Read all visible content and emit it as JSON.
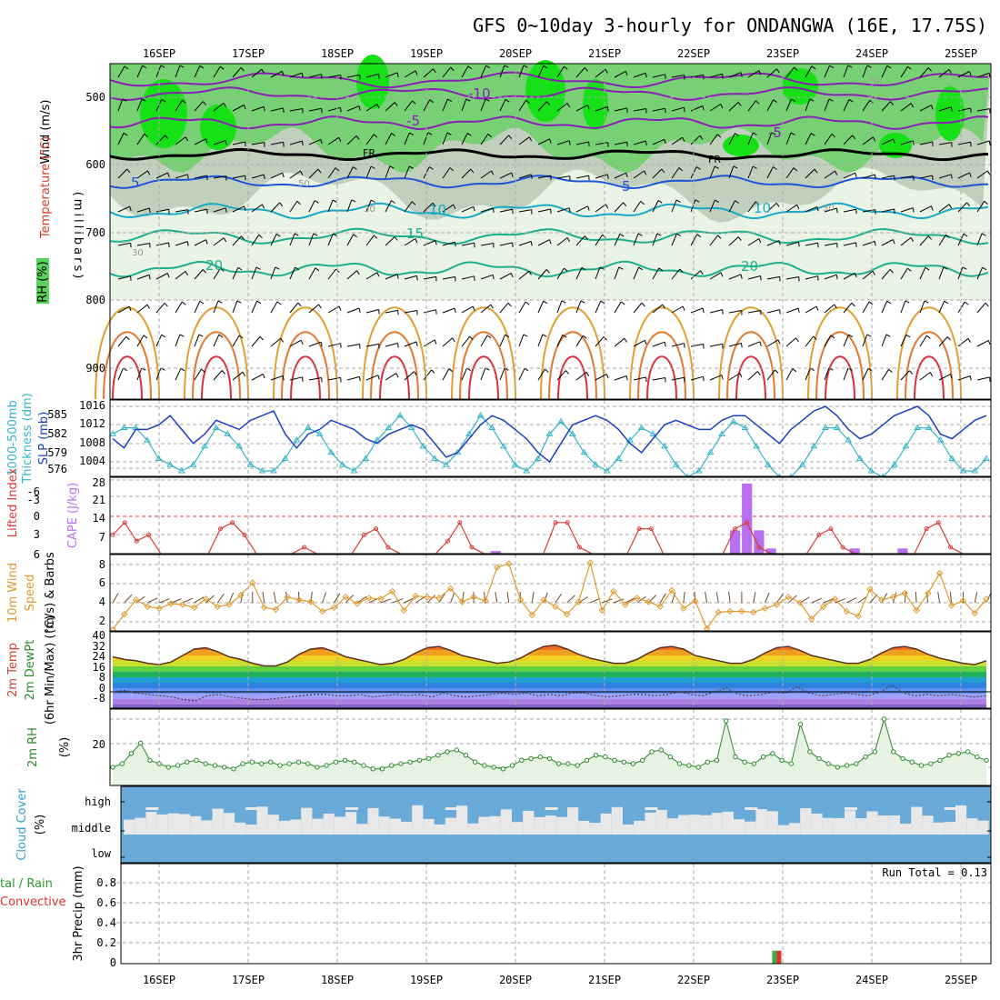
{
  "title": "GFS 0~10day 3-hourly for ONDANGWA (16E, 17.75S)",
  "days": [
    "16SEP",
    "17SEP",
    "18SEP",
    "19SEP",
    "20SEP",
    "21SEP",
    "22SEP",
    "23SEP",
    "24SEP",
    "25SEP"
  ],
  "colors": {
    "rh_light": "#e9f4e4",
    "rh_mid": "#b9c9b6",
    "rh_dark": "#6fcf6a",
    "rh_vivid": "#16e016",
    "temp_cold": "#8a1fb5",
    "temp_mid": "#1f55d6",
    "temp_warm": "#18a8c8",
    "temp_teal": "#1dae8c",
    "temp_hot1": "#e0a030",
    "temp_hot2": "#e07830",
    "temp_hot3": "#d83040",
    "slp": "#1a3fbf",
    "thickness": "#35b5c8",
    "lifted": "#d83a3a",
    "cape": "#b870f0",
    "wind": "#e09a30",
    "rh2m": "#2a8a2a",
    "cloud_bg": "#6aaad8",
    "cloud_fill": "#e8e8e8",
    "rain": "#3ab03a",
    "convective": "#e03030"
  },
  "panels": {
    "upper": {
      "ylabel_wind": "Wind (m/s)",
      "ylabel_temp": "Temperature (°C)",
      "ylabel_rh": "RH (%)",
      "ylabel_pressure": "(millibars)",
      "ticks": [
        "500",
        "600",
        "700",
        "800",
        "900"
      ],
      "temp_labels": [
        "-10",
        "-5",
        "FR",
        "5",
        "10",
        "15",
        "20",
        "-5",
        "FR",
        "5",
        "10",
        "20"
      ],
      "rh_labels": [
        "50",
        "30",
        "30",
        "30",
        "50"
      ]
    },
    "slp": {
      "ylabel1": "1000-500mb",
      "ylabel2": "Thickness (dm)",
      "ylabel3": "SLP (mb)",
      "left_ticks": [
        "585",
        "582",
        "579",
        "576"
      ],
      "right_ticks": [
        "1016",
        "1012",
        "1008",
        "1004"
      ]
    },
    "cape": {
      "ylabel1": "Lifted Index",
      "ylabel2": "CAPE (J/kg)",
      "left_ticks": [
        "-6",
        "-3",
        "0",
        "3",
        "6"
      ],
      "right_ticks": [
        "28",
        "21",
        "14",
        "7"
      ]
    },
    "wind": {
      "ylabel1": "10m Wind",
      "ylabel2": "Speed",
      "ylabel3": "(m/s) & Barbs",
      "ticks": [
        "8",
        "6",
        "4",
        "2"
      ]
    },
    "temp": {
      "ylabel1": "2m Temp",
      "ylabel2": "2m DewPt",
      "ylabel3": "(6hr Min/Max) (°C)",
      "ticks": [
        "40",
        "32",
        "24",
        "16",
        "8",
        "0",
        "-8"
      ]
    },
    "rh": {
      "ylabel1": "2m RH",
      "ylabel2": "(%)",
      "ticks": [
        "20"
      ]
    },
    "cloud": {
      "ylabel1": "Cloud Cover",
      "ylabel2": "(%)",
      "ticks": [
        "high",
        "middle",
        "low"
      ]
    },
    "precip": {
      "ylabel1": "tal / Rain",
      "ylabel2": "Convective",
      "ylabel3": "3hr Precip (mm)",
      "ticks": [
        "0.8",
        "0.6",
        "0.4",
        "0.2",
        "0"
      ],
      "run_total": "Run Total = 0.13"
    }
  },
  "chart_data": [
    {
      "type": "line",
      "name": "SLP / 1000-500mb thickness",
      "series": [
        {
          "name": "SLP (mb)",
          "values": [
            1009,
            1007,
            1011,
            1011,
            1012,
            1014,
            1011,
            1008,
            1010,
            1013,
            1012,
            1011,
            1013,
            1014,
            1015,
            1010,
            1007,
            1010,
            1011,
            1013,
            1012,
            1011,
            1009,
            1008,
            1010,
            1011,
            1012,
            1011,
            1008,
            1005,
            1006,
            1009,
            1012,
            1014,
            1013,
            1011,
            1009,
            1006,
            1004,
            1008,
            1012,
            1013,
            1014,
            1013,
            1011,
            1008,
            1006,
            1009,
            1012,
            1013,
            1012,
            1011,
            1011,
            1013,
            1014,
            1014,
            1012,
            1010,
            1008,
            1011,
            1013,
            1015,
            1016,
            1014,
            1011,
            1009,
            1010,
            1012,
            1014,
            1015,
            1016,
            1014,
            1010,
            1009,
            1011,
            1013,
            1014
          ]
        },
        {
          "name": "Thickness (dm)",
          "values": [
            582,
            583,
            583,
            581,
            578,
            577,
            576,
            577,
            580,
            583,
            582,
            580,
            577,
            576,
            576,
            578,
            581,
            583,
            582,
            579,
            577,
            576,
            578,
            581,
            583,
            585,
            583,
            580,
            578,
            577,
            579,
            582,
            585,
            583,
            580,
            577,
            576,
            578,
            582,
            584,
            582,
            579,
            577,
            576,
            578,
            581,
            583,
            582,
            580,
            577,
            575,
            576,
            579,
            582,
            584,
            583,
            580,
            577,
            575,
            575,
            577,
            580,
            583,
            583,
            581,
            578,
            576,
            575,
            577,
            580,
            583,
            583,
            581,
            578,
            576,
            576,
            578
          ]
        }
      ]
    },
    {
      "type": "bar",
      "name": "CAPE / Lifted Index",
      "series": [
        {
          "name": "Lifted Index",
          "values": [
            3,
            1,
            4,
            3,
            6,
            6,
            6,
            6,
            6,
            2,
            1,
            3,
            6,
            6,
            6,
            6,
            5,
            6,
            6,
            6,
            6,
            3,
            2,
            5,
            6,
            6,
            6,
            6,
            4,
            1,
            5,
            6,
            6,
            6,
            6,
            6,
            6,
            1,
            1,
            5,
            6,
            6,
            6,
            6,
            2,
            2,
            6,
            6,
            6,
            6,
            6,
            6,
            2,
            1,
            5,
            6,
            6,
            6,
            6,
            3,
            2,
            5,
            6,
            6,
            6,
            6,
            6,
            6,
            2,
            1,
            5,
            6,
            6,
            6
          ]
        },
        {
          "name": "CAPE (J/kg)",
          "values": [
            0,
            0,
            0,
            0,
            0,
            0,
            0,
            0,
            0,
            0,
            0,
            0,
            0,
            0,
            0,
            0,
            0,
            0,
            0,
            0,
            0,
            0,
            0,
            0,
            0,
            0,
            0,
            0,
            0,
            0,
            0,
            0,
            1,
            0,
            0,
            0,
            0,
            0,
            0,
            0,
            0,
            0,
            0,
            0,
            0,
            0,
            0,
            0,
            0,
            0,
            0,
            0,
            9,
            27,
            9,
            2,
            0,
            0,
            0,
            0,
            0,
            0,
            2,
            0,
            0,
            0,
            2,
            0,
            0,
            0,
            0,
            0,
            0,
            0
          ]
        }
      ]
    },
    {
      "type": "line",
      "name": "10m wind speed",
      "series": [
        {
          "name": "10m Wind Speed (m/s)",
          "values": [
            1.2,
            2.8,
            4.3,
            3.6,
            3.4,
            3.9,
            3.8,
            3.5,
            4.4,
            3.6,
            3.8,
            4.8,
            6.1,
            3.5,
            3.3,
            4.6,
            4.3,
            4.1,
            3.1,
            3.5,
            4.6,
            3.9,
            4.5,
            4.4,
            5.2,
            3.2,
            4.7,
            4.6,
            4.5,
            5.5,
            4.1,
            4.6,
            4.2,
            7.7,
            8.1,
            4.3,
            2.7,
            4.3,
            3.6,
            2.8,
            4.1,
            8.2,
            3.2,
            5.2,
            3.8,
            4.5,
            4.1,
            3.6,
            5.3,
            3.4,
            4.2,
            1.3,
            3.0,
            3.1,
            3.1,
            3.0,
            3.4,
            3.8,
            4.6,
            4.0,
            2.3,
            3.6,
            4.4,
            3.1,
            2.6,
            5.4,
            4.3,
            4.6,
            5.0,
            3.2,
            5.0,
            7.1,
            3.7,
            4.2,
            2.9,
            4.4
          ]
        }
      ]
    },
    {
      "type": "area",
      "name": "2m temperature / dewpoint",
      "series": [
        {
          "name": "2m Temp (°C)",
          "values": [
            27,
            25,
            24,
            22,
            21,
            23,
            28,
            33,
            34,
            31,
            27,
            25,
            22,
            20,
            20,
            23,
            29,
            33,
            34,
            31,
            27,
            25,
            23,
            21,
            22,
            25,
            30,
            34,
            35,
            32,
            28,
            26,
            24,
            22,
            23,
            26,
            31,
            35,
            36,
            33,
            29,
            26,
            24,
            22,
            22,
            25,
            30,
            34,
            35,
            33,
            28,
            26,
            24,
            22,
            22,
            25,
            30,
            34,
            35,
            32,
            28,
            26,
            24,
            22,
            22,
            25,
            30,
            34,
            35,
            33,
            29,
            26,
            24,
            22,
            21,
            24
          ]
        },
        {
          "name": "2m DewPt (°C)",
          "values": [
            0,
            1,
            -1,
            -2,
            -3,
            -4,
            -6,
            -7,
            -3,
            -2,
            -4,
            -5,
            -6,
            -6,
            -5,
            -4,
            -3,
            -2,
            -2,
            -3,
            -3,
            -2,
            -4,
            -3,
            -2,
            -3,
            -2,
            -4,
            -1,
            -3,
            -4,
            -3,
            -2,
            -1,
            -2,
            -1,
            -3,
            -2,
            -3,
            -1,
            -1,
            -3,
            -4,
            -3,
            -2,
            -2,
            -3,
            -2,
            0,
            -2,
            -3,
            0,
            3,
            -2,
            -3,
            -2,
            0,
            -1,
            4,
            -1,
            -3,
            -2,
            -1,
            -2,
            -3,
            0,
            5,
            -1,
            -3,
            -2,
            -3,
            -2,
            -3,
            -4,
            -3
          ]
        }
      ]
    },
    {
      "type": "area",
      "name": "2m relative humidity",
      "series": [
        {
          "name": "2m RH (%)",
          "values": [
            8,
            10,
            16,
            22,
            12,
            10,
            8,
            9,
            11,
            12,
            10,
            9,
            8,
            7,
            10,
            11,
            10,
            11,
            9,
            10,
            11,
            10,
            8,
            9,
            11,
            12,
            11,
            9,
            7,
            7,
            9,
            10,
            11,
            12,
            13,
            15,
            17,
            18,
            15,
            11,
            9,
            8,
            7,
            9,
            12,
            13,
            14,
            13,
            10,
            10,
            9,
            12,
            15,
            14,
            12,
            11,
            10,
            12,
            17,
            18,
            14,
            10,
            9,
            8,
            11,
            12,
            35,
            14,
            11,
            10,
            14,
            16,
            12,
            10,
            33,
            17,
            13,
            10,
            8,
            9,
            10,
            14,
            17,
            36,
            17,
            13,
            11,
            9,
            10,
            12,
            15,
            16,
            17,
            14,
            12
          ]
        }
      ]
    },
    {
      "type": "bar",
      "name": "3hr precipitation",
      "series": [
        {
          "name": "Total / Rain (mm)",
          "values": [
            0,
            0,
            0,
            0,
            0,
            0,
            0,
            0,
            0,
            0,
            0,
            0,
            0,
            0,
            0,
            0,
            0,
            0,
            0,
            0,
            0,
            0,
            0,
            0,
            0,
            0,
            0,
            0,
            0,
            0,
            0,
            0,
            0,
            0,
            0,
            0,
            0,
            0,
            0,
            0,
            0,
            0,
            0,
            0,
            0,
            0,
            0,
            0,
            0,
            0,
            0,
            0,
            0,
            0,
            0,
            0,
            0,
            0.13,
            0,
            0,
            0,
            0,
            0,
            0,
            0,
            0,
            0,
            0,
            0,
            0,
            0,
            0,
            0,
            0,
            0,
            0
          ]
        },
        {
          "name": "Convective (mm)",
          "values": [
            0,
            0,
            0,
            0,
            0,
            0,
            0,
            0,
            0,
            0,
            0,
            0,
            0,
            0,
            0,
            0,
            0,
            0,
            0,
            0,
            0,
            0,
            0,
            0,
            0,
            0,
            0,
            0,
            0,
            0,
            0,
            0,
            0,
            0,
            0,
            0,
            0,
            0,
            0,
            0,
            0,
            0,
            0,
            0,
            0,
            0,
            0,
            0,
            0,
            0,
            0,
            0,
            0,
            0,
            0,
            0,
            0,
            0.13,
            0,
            0,
            0,
            0,
            0,
            0,
            0,
            0,
            0,
            0,
            0,
            0,
            0,
            0,
            0,
            0,
            0,
            0
          ]
        }
      ]
    }
  ]
}
